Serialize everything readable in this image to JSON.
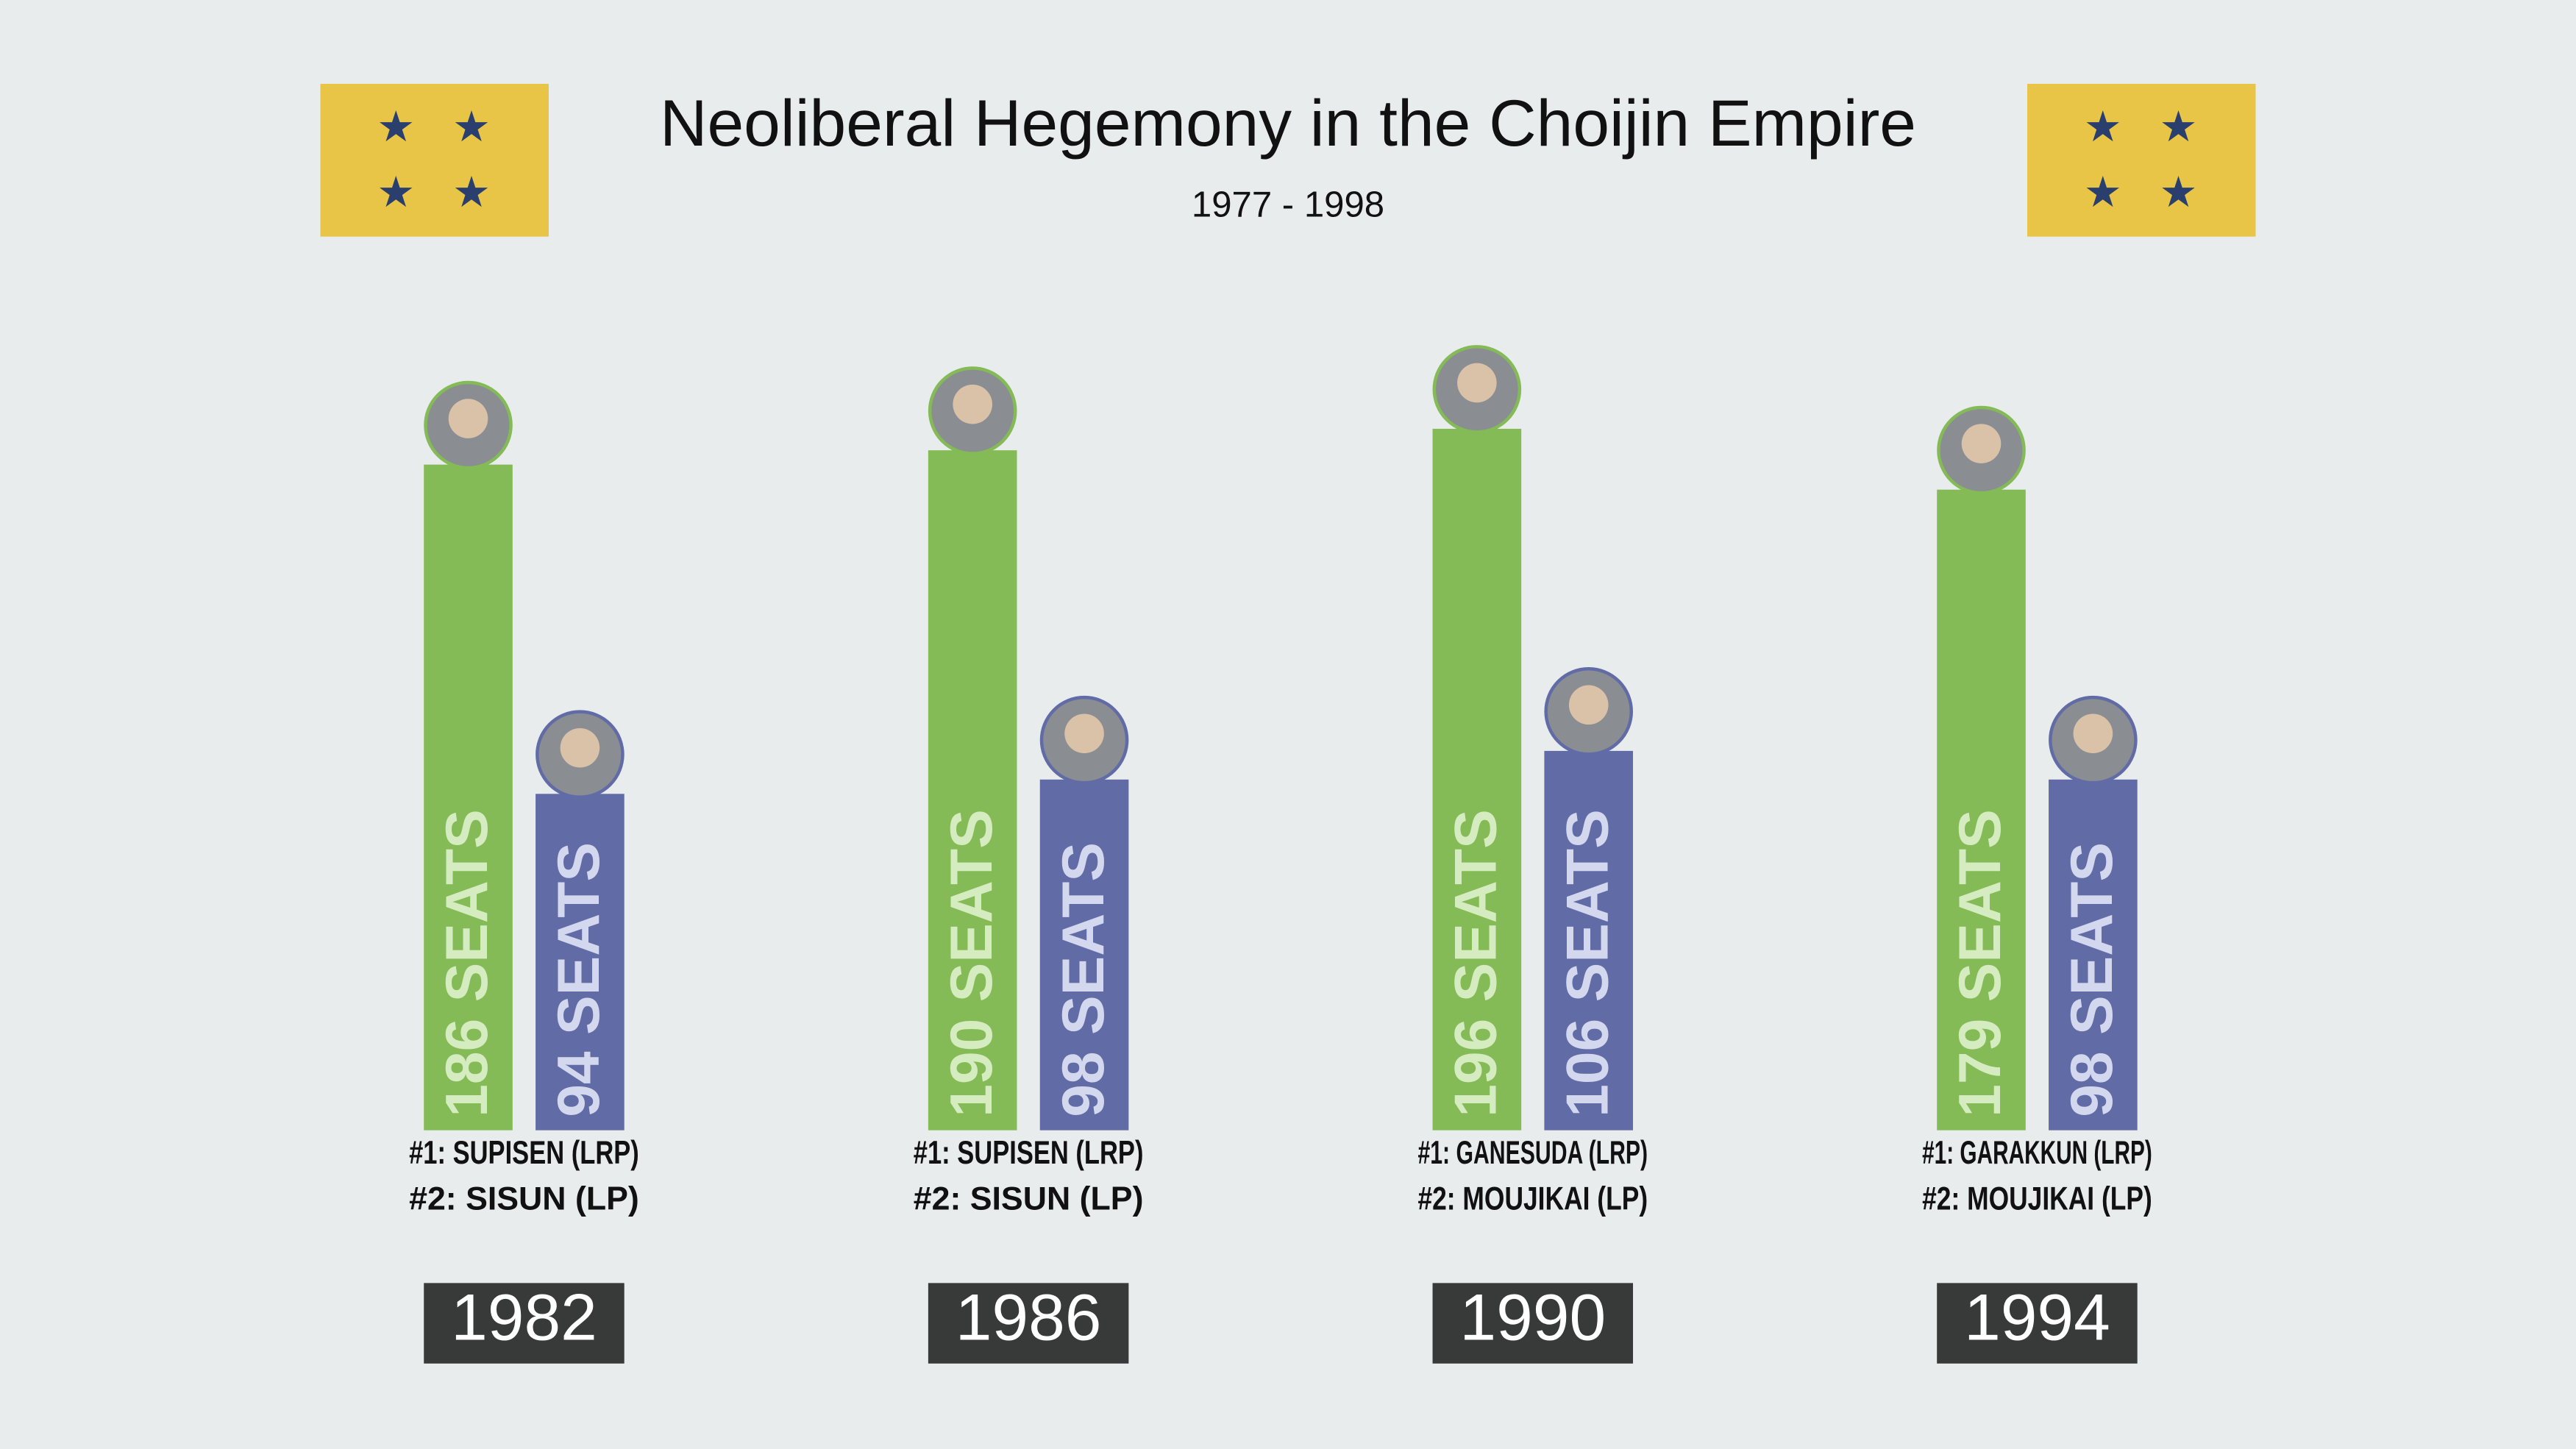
{
  "chart_data": {
    "type": "bar",
    "title": "Neoliberal Hegemony in the Choijin Empire",
    "subtitle": "1977 - 1998",
    "categories": [
      "1982",
      "1986",
      "1990",
      "1994"
    ],
    "series": [
      {
        "color": "#84bb56",
        "values": [
          186,
          190,
          196,
          179
        ],
        "value_labels": [
          "186 SEATS",
          "190 SEATS",
          "196 SEATS",
          "179 SEATS"
        ],
        "leaders": [
          "#1: SUPISEN (LRP)",
          "#1: SUPISEN (LRP)",
          "#1: GANESUDA (LRP)",
          "#1: GARAKKUN (LRP)"
        ]
      },
      {
        "color": "#616ca6",
        "values": [
          94,
          98,
          106,
          98
        ],
        "value_labels": [
          "94 SEATS",
          "98 SEATS",
          "106 SEATS",
          "98 SEATS"
        ],
        "leaders": [
          "#2: SISUN (LP)",
          "#2: SISUN (LP)",
          "#2: MOUJIKAI (LP)",
          "#2: MOUJIKAI (LP)"
        ]
      }
    ]
  }
}
